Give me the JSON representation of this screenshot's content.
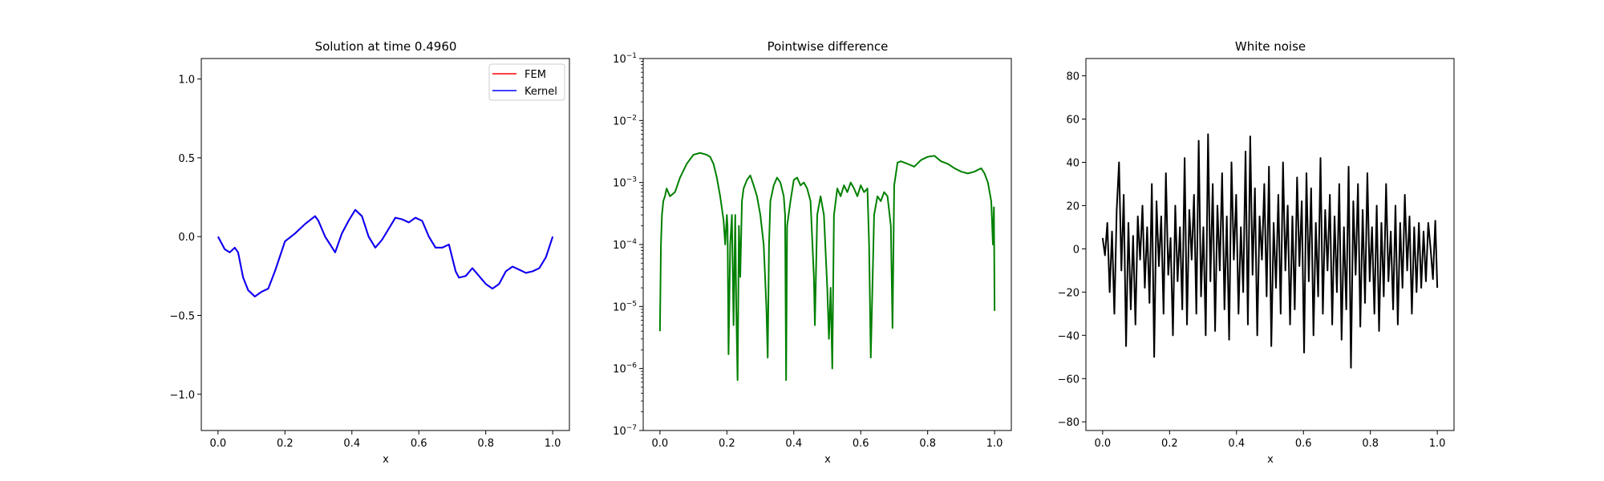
{
  "chart_data": [
    {
      "type": "line",
      "title": "Solution at time 0.4960",
      "xlabel": "x",
      "ylabel": "",
      "xlim": [
        -0.05,
        1.05
      ],
      "ylim": [
        -1.23,
        1.13
      ],
      "xticks": [
        0.0,
        0.2,
        0.4,
        0.6,
        0.8,
        1.0
      ],
      "xtick_labels": [
        "0.0",
        "0.2",
        "0.4",
        "0.6",
        "0.8",
        "1.0"
      ],
      "yticks": [
        -1.0,
        -0.5,
        0.0,
        0.5,
        1.0
      ],
      "ytick_labels": [
        "−1.0",
        "−0.5",
        "0.0",
        "0.5",
        "1.0"
      ],
      "legend": {
        "placement": "upper right",
        "entries": [
          {
            "name": "FEM",
            "color": "#ff0000"
          },
          {
            "name": "Kernel",
            "color": "#0000ff"
          }
        ]
      },
      "series": [
        {
          "name": "FEM",
          "color": "#ff0000",
          "x": [
            0.0,
            0.02,
            0.035,
            0.05,
            0.06,
            0.075,
            0.09,
            0.11,
            0.13,
            0.15,
            0.17,
            0.2,
            0.23,
            0.26,
            0.29,
            0.3,
            0.32,
            0.35,
            0.37,
            0.39,
            0.41,
            0.43,
            0.45,
            0.47,
            0.49,
            0.51,
            0.53,
            0.55,
            0.57,
            0.59,
            0.61,
            0.63,
            0.65,
            0.67,
            0.69,
            0.71,
            0.72,
            0.74,
            0.76,
            0.78,
            0.8,
            0.82,
            0.84,
            0.86,
            0.88,
            0.9,
            0.92,
            0.94,
            0.96,
            0.98,
            1.0
          ],
          "y": [
            0.0,
            -0.08,
            -0.1,
            -0.07,
            -0.1,
            -0.26,
            -0.34,
            -0.38,
            -0.35,
            -0.33,
            -0.22,
            -0.03,
            0.02,
            0.08,
            0.13,
            0.1,
            0.0,
            -0.1,
            0.02,
            0.1,
            0.17,
            0.13,
            0.0,
            -0.07,
            -0.02,
            0.05,
            0.12,
            0.11,
            0.09,
            0.12,
            0.1,
            0.0,
            -0.07,
            -0.07,
            -0.05,
            -0.22,
            -0.26,
            -0.25,
            -0.2,
            -0.25,
            -0.3,
            -0.33,
            -0.3,
            -0.22,
            -0.19,
            -0.21,
            -0.23,
            -0.22,
            -0.2,
            -0.13,
            0.0
          ]
        },
        {
          "name": "Kernel",
          "color": "#0000ff",
          "x": [
            0.0,
            0.02,
            0.035,
            0.05,
            0.06,
            0.075,
            0.09,
            0.11,
            0.13,
            0.15,
            0.17,
            0.2,
            0.23,
            0.26,
            0.29,
            0.3,
            0.32,
            0.35,
            0.37,
            0.39,
            0.41,
            0.43,
            0.45,
            0.47,
            0.49,
            0.51,
            0.53,
            0.55,
            0.57,
            0.59,
            0.61,
            0.63,
            0.65,
            0.67,
            0.69,
            0.71,
            0.72,
            0.74,
            0.76,
            0.78,
            0.8,
            0.82,
            0.84,
            0.86,
            0.88,
            0.9,
            0.92,
            0.94,
            0.96,
            0.98,
            1.0
          ],
          "y": [
            0.0,
            -0.08,
            -0.1,
            -0.07,
            -0.1,
            -0.26,
            -0.34,
            -0.38,
            -0.35,
            -0.33,
            -0.22,
            -0.03,
            0.02,
            0.08,
            0.13,
            0.1,
            0.0,
            -0.1,
            0.02,
            0.1,
            0.17,
            0.13,
            0.0,
            -0.07,
            -0.02,
            0.05,
            0.12,
            0.11,
            0.09,
            0.12,
            0.1,
            0.0,
            -0.07,
            -0.07,
            -0.05,
            -0.22,
            -0.26,
            -0.25,
            -0.2,
            -0.25,
            -0.3,
            -0.33,
            -0.3,
            -0.22,
            -0.19,
            -0.21,
            -0.23,
            -0.22,
            -0.2,
            -0.13,
            0.0
          ]
        }
      ]
    },
    {
      "type": "line",
      "title": "Pointwise difference",
      "xlabel": "x",
      "ylabel": "",
      "yscale": "log",
      "xlim": [
        -0.05,
        1.05
      ],
      "ylim": [
        1e-07,
        0.1
      ],
      "xticks": [
        0.0,
        0.2,
        0.4,
        0.6,
        0.8,
        1.0
      ],
      "xtick_labels": [
        "0.0",
        "0.2",
        "0.4",
        "0.6",
        "0.8",
        "1.0"
      ],
      "yticks": [
        1e-07,
        1e-06,
        1e-05,
        0.0001,
        0.001,
        0.01,
        0.1
      ],
      "ytick_bases": [
        "10",
        "10",
        "10",
        "10",
        "10",
        "10",
        "10"
      ],
      "ytick_exponents": [
        "−7",
        "−6",
        "−5",
        "−4",
        "−3",
        "−2",
        "−1"
      ],
      "series": [
        {
          "name": "",
          "color": "#008000",
          "x": [
            0.0,
            0.003,
            0.006,
            0.01,
            0.015,
            0.02,
            0.03,
            0.045,
            0.06,
            0.08,
            0.1,
            0.12,
            0.14,
            0.15,
            0.16,
            0.17,
            0.18,
            0.19,
            0.195,
            0.2,
            0.202,
            0.205,
            0.21,
            0.215,
            0.22,
            0.225,
            0.228,
            0.232,
            0.236,
            0.24,
            0.245,
            0.25,
            0.26,
            0.27,
            0.28,
            0.29,
            0.3,
            0.31,
            0.318,
            0.322,
            0.326,
            0.33,
            0.34,
            0.35,
            0.36,
            0.37,
            0.374,
            0.377,
            0.38,
            0.39,
            0.4,
            0.41,
            0.42,
            0.43,
            0.44,
            0.45,
            0.46,
            0.463,
            0.47,
            0.48,
            0.49,
            0.5,
            0.505,
            0.51,
            0.515,
            0.52,
            0.53,
            0.54,
            0.55,
            0.56,
            0.57,
            0.58,
            0.59,
            0.6,
            0.61,
            0.62,
            0.625,
            0.63,
            0.64,
            0.65,
            0.66,
            0.67,
            0.68,
            0.69,
            0.695,
            0.7,
            0.71,
            0.72,
            0.74,
            0.76,
            0.78,
            0.8,
            0.82,
            0.84,
            0.86,
            0.88,
            0.9,
            0.92,
            0.94,
            0.96,
            0.97,
            0.98,
            0.99,
            0.995,
            0.998,
            1.0
          ],
          "y": [
            4e-06,
            0.0001,
            0.0003,
            0.0005,
            0.0006,
            0.0008,
            0.0006,
            0.0007,
            0.0012,
            0.002,
            0.0028,
            0.003,
            0.0028,
            0.0026,
            0.002,
            0.0012,
            0.0006,
            0.00025,
            0.0001,
            0.0003,
            0.0002,
            1.7e-06,
            0.0001,
            0.0003,
            5e-06,
            0.0003,
            1e-05,
            6.5e-07,
            0.0002,
            3e-05,
            0.0005,
            0.0008,
            0.0011,
            0.0013,
            0.0009,
            0.0006,
            0.0003,
            0.0001,
            1e-05,
            1.5e-06,
            0.0001,
            0.0005,
            0.0009,
            0.0012,
            0.001,
            0.0006,
            0.0003,
            6.5e-07,
            0.0002,
            0.0005,
            0.0011,
            0.0012,
            0.0009,
            0.001,
            0.0008,
            0.0005,
            3e-05,
            5e-06,
            0.0003,
            0.0006,
            0.0003,
            2e-05,
            3e-06,
            2e-05,
            1e-06,
            0.0003,
            0.0008,
            0.0006,
            0.0009,
            0.0007,
            0.001,
            0.0008,
            0.0006,
            0.0009,
            0.0007,
            0.0008,
            0.0001,
            1.5e-06,
            0.0003,
            0.0006,
            0.0005,
            0.0007,
            0.0006,
            0.0002,
            4.5e-06,
            0.0009,
            0.0021,
            0.0022,
            0.002,
            0.0018,
            0.0023,
            0.0026,
            0.0027,
            0.0022,
            0.002,
            0.0017,
            0.0015,
            0.0014,
            0.0015,
            0.0017,
            0.0014,
            0.001,
            0.0005,
            0.0001,
            0.0004,
            8.5e-06
          ]
        }
      ]
    },
    {
      "type": "line",
      "title": "White noise",
      "xlabel": "x",
      "ylabel": "",
      "xlim": [
        -0.05,
        1.05
      ],
      "ylim": [
        -84,
        88
      ],
      "xticks": [
        0.0,
        0.2,
        0.4,
        0.6,
        0.8,
        1.0
      ],
      "xtick_labels": [
        "0.0",
        "0.2",
        "0.4",
        "0.6",
        "0.8",
        "1.0"
      ],
      "yticks": [
        -80,
        -60,
        -40,
        -20,
        0,
        20,
        40,
        60,
        80
      ],
      "ytick_labels": [
        "−80",
        "−60",
        "−40",
        "−20",
        "0",
        "20",
        "40",
        "60",
        "80"
      ],
      "series": [
        {
          "name": "",
          "color": "#000000",
          "x": [
            0.0,
            0.007,
            0.014,
            0.021,
            0.028,
            0.035,
            0.042,
            0.049,
            0.056,
            0.063,
            0.07,
            0.077,
            0.084,
            0.091,
            0.098,
            0.105,
            0.112,
            0.119,
            0.126,
            0.133,
            0.14,
            0.147,
            0.154,
            0.161,
            0.168,
            0.175,
            0.182,
            0.189,
            0.196,
            0.203,
            0.21,
            0.217,
            0.224,
            0.231,
            0.238,
            0.245,
            0.252,
            0.259,
            0.266,
            0.273,
            0.28,
            0.287,
            0.294,
            0.301,
            0.308,
            0.315,
            0.322,
            0.329,
            0.336,
            0.343,
            0.35,
            0.357,
            0.364,
            0.371,
            0.378,
            0.385,
            0.392,
            0.399,
            0.406,
            0.413,
            0.42,
            0.427,
            0.434,
            0.441,
            0.448,
            0.455,
            0.462,
            0.469,
            0.476,
            0.483,
            0.49,
            0.497,
            0.504,
            0.511,
            0.518,
            0.525,
            0.532,
            0.539,
            0.546,
            0.553,
            0.56,
            0.567,
            0.574,
            0.581,
            0.588,
            0.595,
            0.602,
            0.609,
            0.616,
            0.623,
            0.63,
            0.637,
            0.644,
            0.651,
            0.658,
            0.665,
            0.672,
            0.679,
            0.686,
            0.693,
            0.7,
            0.707,
            0.714,
            0.721,
            0.728,
            0.735,
            0.742,
            0.749,
            0.756,
            0.763,
            0.77,
            0.777,
            0.784,
            0.791,
            0.798,
            0.805,
            0.812,
            0.819,
            0.826,
            0.833,
            0.84,
            0.847,
            0.854,
            0.861,
            0.868,
            0.875,
            0.882,
            0.889,
            0.896,
            0.903,
            0.91,
            0.917,
            0.924,
            0.931,
            0.938,
            0.945,
            0.952,
            0.959,
            0.966,
            0.973,
            0.98,
            0.987,
            0.994,
            1.0
          ],
          "y": [
            5,
            -3,
            12,
            -20,
            8,
            -30,
            18,
            40,
            -10,
            25,
            -45,
            12,
            -28,
            6,
            -35,
            15,
            -5,
            20,
            -18,
            10,
            -25,
            30,
            -50,
            22,
            -8,
            15,
            -30,
            35,
            -12,
            5,
            -40,
            20,
            -15,
            10,
            -28,
            42,
            -35,
            18,
            -5,
            25,
            -30,
            50,
            -22,
            10,
            -40,
            53,
            -15,
            30,
            -38,
            20,
            -10,
            35,
            -28,
            15,
            -42,
            40,
            -5,
            25,
            -30,
            10,
            -20,
            45,
            -35,
            52,
            -12,
            28,
            -40,
            15,
            -5,
            30,
            -22,
            38,
            -45,
            12,
            -18,
            25,
            -30,
            40,
            -10,
            20,
            -35,
            15,
            -28,
            33,
            -8,
            22,
            -48,
            35,
            -15,
            28,
            -40,
            12,
            -22,
            42,
            -30,
            18,
            -10,
            25,
            -35,
            15,
            -20,
            30,
            -42,
            10,
            -28,
            38,
            -55,
            22,
            -12,
            30,
            -36,
            18,
            -25,
            35,
            -15,
            10,
            -30,
            20,
            -38,
            12,
            -22,
            30,
            -15,
            8,
            -28,
            20,
            -35,
            12,
            -18,
            25,
            -10,
            15,
            -30,
            10,
            -20,
            12,
            -18,
            8,
            -15,
            12,
            0,
            -14,
            13,
            -18
          ]
        }
      ]
    }
  ]
}
